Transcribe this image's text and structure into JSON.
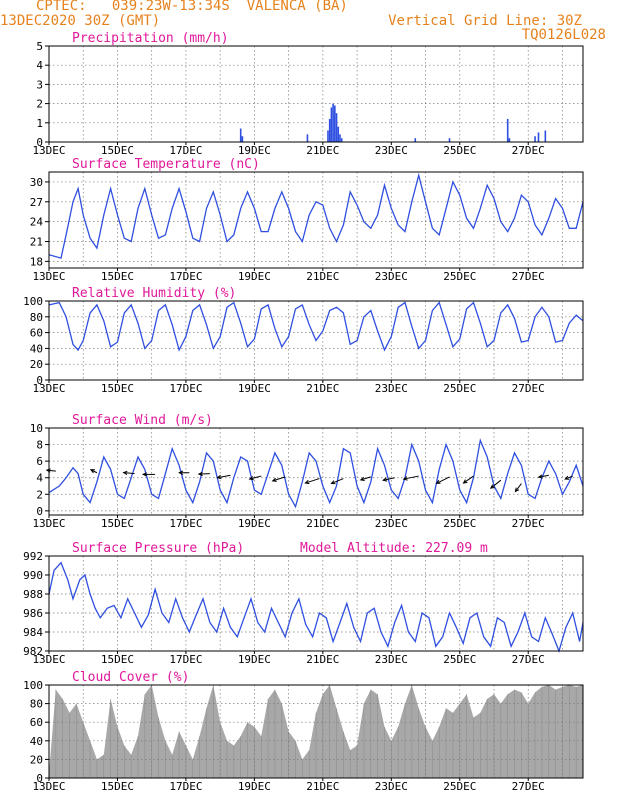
{
  "header": {
    "line1": "CPTEC:   039:23W-13:34S  VALENCA (BA)",
    "line2": "13DEC2020 30Z (GMT)",
    "grid_note": "Vertical Grid Line: 30Z",
    "code": "TQ0126L028"
  },
  "colors": {
    "header": "#e6821e",
    "title": "#e0189a",
    "series": "#2f4fe0",
    "cloud": "#a8a8a8",
    "grid": "#7a7a7a",
    "arrow": "#000000"
  },
  "chart_data": [
    {
      "type": "bar",
      "title": "Precipitation (mm/h)",
      "ylim": [
        0,
        5
      ],
      "yticks": [
        0,
        1,
        2,
        3,
        4,
        5
      ],
      "xticks": [
        "13DEC",
        "15DEC",
        "17DEC",
        "19DEC",
        "21DEC",
        "23DEC",
        "25DEC",
        "27DEC"
      ],
      "grid": true,
      "x_days": [
        5.6,
        5.65,
        7.55,
        8.15,
        8.2,
        8.25,
        8.3,
        8.35,
        8.4,
        8.45,
        8.5,
        8.55,
        10.7,
        11.7,
        13.4,
        13.45,
        14.2,
        14.3,
        14.5
      ],
      "values": [
        0.7,
        0.3,
        0.4,
        0.6,
        1.2,
        1.8,
        2.0,
        1.9,
        1.5,
        0.8,
        0.4,
        0.2,
        0.2,
        0.2,
        1.2,
        0.2,
        0.3,
        0.5,
        0.6
      ]
    },
    {
      "type": "line",
      "title": "Surface Temperature (nC)",
      "ylim": [
        17,
        31.5
      ],
      "yticks": [
        18,
        21,
        24,
        27,
        30
      ],
      "xticks": [
        "13DEC",
        "15DEC",
        "17DEC",
        "19DEC",
        "21DEC",
        "23DEC",
        "25DEC",
        "27DEC"
      ],
      "grid": true,
      "series": [
        {
          "x_days": [
            0,
            0.35,
            0.5,
            0.7,
            0.85,
            1.0,
            1.2,
            1.4,
            1.6,
            1.8,
            2.0,
            2.2,
            2.4,
            2.6,
            2.8,
            3.0,
            3.2,
            3.4,
            3.6,
            3.8,
            4.0,
            4.2,
            4.4,
            4.6,
            4.8,
            5.0,
            5.2,
            5.4,
            5.6,
            5.8,
            6.0,
            6.2,
            6.4,
            6.6,
            6.8,
            7.0,
            7.2,
            7.4,
            7.6,
            7.8,
            8.0,
            8.2,
            8.4,
            8.6,
            8.8,
            9.0,
            9.2,
            9.4,
            9.6,
            9.8,
            10.0,
            10.2,
            10.4,
            10.6,
            10.8,
            11.0,
            11.2,
            11.4,
            11.6,
            11.8,
            12.0,
            12.2,
            12.4,
            12.6,
            12.8,
            13.0,
            13.2,
            13.4,
            13.6,
            13.8,
            14.0,
            14.2,
            14.4,
            14.6,
            14.8,
            15.0,
            15.2,
            15.4,
            15.6
          ],
          "values": [
            19.0,
            18.5,
            22.0,
            27.0,
            29.0,
            25.0,
            21.5,
            20.0,
            25.0,
            29.0,
            25.0,
            21.5,
            21.0,
            26.0,
            29.0,
            25.0,
            21.5,
            22.0,
            26.0,
            29.0,
            25.5,
            21.5,
            21.0,
            26.0,
            28.5,
            25.0,
            21.0,
            22.0,
            26.0,
            28.5,
            26.0,
            22.5,
            22.5,
            26.0,
            28.5,
            26.0,
            22.5,
            21.0,
            25.0,
            27.0,
            26.5,
            23.0,
            21.0,
            23.5,
            28.5,
            26.5,
            24.0,
            23.0,
            25.0,
            29.5,
            26.0,
            23.5,
            22.5,
            27.0,
            31.0,
            27.0,
            23.0,
            22.0,
            26.0,
            30.0,
            28.0,
            24.5,
            23.0,
            26.0,
            29.5,
            27.5,
            24.0,
            22.5,
            24.5,
            28.0,
            27.0,
            23.5,
            22.0,
            24.5,
            27.5,
            26.0,
            23.0,
            23.0,
            27.0
          ]
        }
      ]
    },
    {
      "type": "line",
      "title": "Relative Humidity (%)",
      "ylim": [
        0,
        100
      ],
      "yticks": [
        0,
        20,
        40,
        60,
        80,
        100
      ],
      "xticks": [
        "13DEC",
        "15DEC",
        "17DEC",
        "19DEC",
        "21DEC",
        "23DEC",
        "25DEC",
        "27DEC"
      ],
      "grid": true,
      "series": [
        {
          "x_days": [
            0,
            0.3,
            0.5,
            0.7,
            0.85,
            1.0,
            1.2,
            1.4,
            1.6,
            1.8,
            2.0,
            2.2,
            2.4,
            2.6,
            2.8,
            3.0,
            3.2,
            3.4,
            3.6,
            3.8,
            4.0,
            4.2,
            4.4,
            4.6,
            4.8,
            5.0,
            5.2,
            5.4,
            5.6,
            5.8,
            6.0,
            6.2,
            6.4,
            6.6,
            6.8,
            7.0,
            7.2,
            7.4,
            7.6,
            7.8,
            8.0,
            8.2,
            8.4,
            8.6,
            8.8,
            9.0,
            9.2,
            9.4,
            9.6,
            9.8,
            10.0,
            10.2,
            10.4,
            10.6,
            10.8,
            11.0,
            11.2,
            11.4,
            11.6,
            11.8,
            12.0,
            12.2,
            12.4,
            12.6,
            12.8,
            13.0,
            13.2,
            13.4,
            13.6,
            13.8,
            14.0,
            14.2,
            14.4,
            14.6,
            14.8,
            15.0,
            15.2,
            15.4,
            15.6
          ],
          "values": [
            95,
            98,
            80,
            45,
            38,
            50,
            85,
            95,
            75,
            42,
            48,
            85,
            95,
            72,
            40,
            50,
            88,
            95,
            70,
            38,
            55,
            88,
            95,
            70,
            40,
            55,
            92,
            98,
            72,
            42,
            52,
            90,
            95,
            65,
            42,
            55,
            90,
            95,
            70,
            50,
            62,
            88,
            92,
            85,
            45,
            50,
            80,
            88,
            62,
            38,
            55,
            92,
            98,
            68,
            40,
            50,
            88,
            98,
            70,
            42,
            52,
            90,
            98,
            72,
            42,
            50,
            85,
            95,
            78,
            48,
            50,
            80,
            92,
            80,
            48,
            50,
            72,
            82,
            75
          ]
        }
      ]
    },
    {
      "type": "line",
      "title": "Surface Wind (m/s)",
      "ylim": [
        -0.5,
        10
      ],
      "yticks": [
        0,
        2,
        4,
        6,
        8,
        10
      ],
      "xticks": [
        "13DEC",
        "15DEC",
        "17DEC",
        "19DEC",
        "21DEC",
        "23DEC",
        "25DEC",
        "27DEC"
      ],
      "grid": true,
      "series": [
        {
          "x_days": [
            0,
            0.3,
            0.5,
            0.7,
            0.85,
            1.0,
            1.2,
            1.4,
            1.6,
            1.8,
            2.0,
            2.2,
            2.4,
            2.6,
            2.8,
            3.0,
            3.2,
            3.4,
            3.6,
            3.8,
            4.0,
            4.2,
            4.4,
            4.6,
            4.8,
            5.0,
            5.2,
            5.4,
            5.6,
            5.8,
            6.0,
            6.2,
            6.4,
            6.6,
            6.8,
            7.0,
            7.2,
            7.4,
            7.6,
            7.8,
            8.0,
            8.2,
            8.4,
            8.6,
            8.8,
            9.0,
            9.2,
            9.4,
            9.6,
            9.8,
            10.0,
            10.2,
            10.4,
            10.6,
            10.8,
            11.0,
            11.2,
            11.4,
            11.6,
            11.8,
            12.0,
            12.2,
            12.4,
            12.6,
            12.8,
            13.0,
            13.2,
            13.4,
            13.6,
            13.8,
            14.0,
            14.2,
            14.4,
            14.6,
            14.8,
            15.0,
            15.2,
            15.4,
            15.6
          ],
          "values": [
            2.2,
            3.0,
            4.0,
            5.2,
            4.5,
            2.0,
            1.0,
            3.5,
            6.5,
            5.0,
            2.0,
            1.5,
            4.0,
            6.5,
            5.0,
            2.0,
            1.5,
            4.5,
            7.5,
            5.5,
            2.5,
            1.0,
            3.5,
            7.0,
            6.0,
            2.5,
            1.0,
            4.0,
            6.5,
            6.0,
            2.5,
            2.0,
            4.5,
            7.0,
            5.5,
            2.0,
            0.5,
            3.5,
            7.0,
            6.0,
            3.0,
            1.0,
            3.0,
            7.5,
            7.0,
            3.0,
            1.0,
            3.5,
            7.5,
            5.5,
            2.5,
            1.5,
            4.0,
            8.0,
            6.0,
            2.5,
            1.0,
            5.0,
            8.0,
            6.0,
            2.5,
            1.0,
            4.0,
            8.5,
            6.5,
            3.0,
            1.5,
            4.5,
            7.0,
            5.5,
            2.0,
            1.5,
            4.0,
            6.0,
            4.5,
            2.0,
            3.5,
            5.5,
            3.0
          ]
        }
      ],
      "arrows": {
        "x_days": [
          0.2,
          1.4,
          2.5,
          3.1,
          4.1,
          4.7,
          5.3,
          6.2,
          6.9,
          7.9,
          8.6,
          9.4,
          10.1,
          10.8,
          11.7,
          12.4,
          13.2,
          13.8,
          14.6,
          15.3
        ],
        "y_values": [
          4.8,
          4.6,
          4.5,
          4.4,
          4.6,
          4.5,
          4.3,
          4.2,
          4.1,
          3.9,
          3.9,
          4.1,
          4.0,
          4.2,
          4.1,
          4.2,
          3.7,
          3.3,
          4.3,
          4.2
        ],
        "u": [
          -1.8,
          -1.2,
          -2.2,
          -2.4,
          -2.0,
          -2.2,
          -2.6,
          -2.3,
          -2.5,
          -2.8,
          -2.4,
          -2.0,
          -2.3,
          -3.0,
          -2.6,
          -2.0,
          -2.0,
          -1.2,
          -2.0,
          -1.5
        ],
        "v": [
          0.2,
          0.6,
          0.2,
          0.0,
          0.0,
          -0.1,
          -0.5,
          -0.6,
          -0.8,
          -0.9,
          -1.0,
          -0.6,
          -0.5,
          -0.6,
          -1.3,
          -1.4,
          -1.6,
          -1.6,
          -0.4,
          -0.6
        ]
      }
    },
    {
      "type": "line",
      "title": "Surface Pressure (hPa)",
      "annotation": "Model Altitude: 227.09 m",
      "ylim": [
        982,
        992
      ],
      "yticks": [
        982,
        984,
        986,
        988,
        990,
        992
      ],
      "xticks": [
        "13DEC",
        "15DEC",
        "17DEC",
        "19DEC",
        "21DEC",
        "23DEC",
        "25DEC",
        "27DEC"
      ],
      "grid": true,
      "series": [
        {
          "x_days": [
            0,
            0.15,
            0.35,
            0.55,
            0.7,
            0.9,
            1.05,
            1.2,
            1.35,
            1.5,
            1.7,
            1.9,
            2.1,
            2.3,
            2.5,
            2.7,
            2.9,
            3.1,
            3.3,
            3.5,
            3.7,
            3.9,
            4.1,
            4.3,
            4.5,
            4.7,
            4.9,
            5.1,
            5.3,
            5.5,
            5.7,
            5.9,
            6.1,
            6.3,
            6.5,
            6.7,
            6.9,
            7.1,
            7.3,
            7.5,
            7.7,
            7.9,
            8.1,
            8.3,
            8.5,
            8.7,
            8.9,
            9.1,
            9.3,
            9.5,
            9.7,
            9.9,
            10.1,
            10.3,
            10.5,
            10.7,
            10.9,
            11.1,
            11.3,
            11.5,
            11.7,
            11.9,
            12.1,
            12.3,
            12.5,
            12.7,
            12.9,
            13.1,
            13.3,
            13.5,
            13.7,
            13.9,
            14.1,
            14.3,
            14.5,
            14.7,
            14.9,
            15.1,
            15.3,
            15.5,
            15.6
          ],
          "values": [
            988.0,
            990.5,
            991.3,
            989.5,
            987.5,
            989.5,
            990.0,
            988.0,
            986.5,
            985.5,
            986.5,
            986.8,
            985.5,
            987.5,
            986.0,
            984.5,
            985.8,
            988.5,
            986.0,
            985.0,
            987.5,
            985.5,
            984.0,
            985.8,
            987.5,
            985.0,
            984.0,
            986.5,
            984.5,
            983.5,
            985.5,
            987.5,
            985.0,
            984.0,
            986.5,
            985.0,
            983.5,
            986.0,
            987.5,
            984.8,
            983.5,
            986.0,
            985.5,
            983.0,
            985.0,
            987.0,
            984.5,
            983.0,
            986.0,
            986.5,
            984.0,
            982.5,
            985.0,
            986.8,
            984.0,
            983.0,
            986.0,
            985.5,
            982.5,
            983.5,
            986.0,
            984.5,
            982.8,
            985.5,
            986.0,
            983.5,
            982.5,
            985.5,
            985.0,
            982.5,
            984.0,
            986.0,
            983.5,
            983.0,
            985.5,
            983.8,
            982.0,
            984.5,
            986.0,
            983.0,
            985.0
          ]
        }
      ]
    },
    {
      "type": "bar",
      "title": "Cloud Cover (%)",
      "ylim": [
        0,
        100
      ],
      "yticks": [
        0,
        20,
        40,
        60,
        80,
        100
      ],
      "xticks": [
        "13DEC",
        "15DEC",
        "17DEC",
        "19DEC",
        "21DEC",
        "23DEC",
        "25DEC",
        "27DEC"
      ],
      "grid": true,
      "x_days": [
        0.0,
        0.2,
        0.4,
        0.6,
        0.8,
        1.0,
        1.2,
        1.4,
        1.6,
        1.8,
        2.0,
        2.2,
        2.4,
        2.6,
        2.8,
        3.0,
        3.2,
        3.4,
        3.6,
        3.8,
        4.0,
        4.2,
        4.4,
        4.6,
        4.8,
        5.0,
        5.2,
        5.4,
        5.6,
        5.8,
        6.0,
        6.2,
        6.4,
        6.6,
        6.8,
        7.0,
        7.2,
        7.4,
        7.6,
        7.8,
        8.0,
        8.2,
        8.4,
        8.6,
        8.8,
        9.0,
        9.2,
        9.4,
        9.6,
        9.8,
        10.0,
        10.2,
        10.4,
        10.6,
        10.8,
        11.0,
        11.2,
        11.4,
        11.6,
        11.8,
        12.0,
        12.2,
        12.4,
        12.6,
        12.8,
        13.0,
        13.2,
        13.4,
        13.6,
        13.8,
        14.0,
        14.2,
        14.4,
        14.6,
        14.8,
        15.0,
        15.2,
        15.4,
        15.6
      ],
      "values": [
        5,
        95,
        85,
        70,
        80,
        60,
        40,
        20,
        25,
        85,
        55,
        35,
        25,
        45,
        90,
        100,
        65,
        40,
        25,
        50,
        35,
        20,
        45,
        75,
        100,
        60,
        40,
        35,
        45,
        60,
        55,
        45,
        85,
        95,
        80,
        50,
        40,
        20,
        30,
        70,
        90,
        100,
        75,
        50,
        30,
        35,
        80,
        95,
        90,
        55,
        40,
        55,
        80,
        100,
        75,
        55,
        40,
        55,
        75,
        70,
        80,
        90,
        65,
        70,
        85,
        90,
        80,
        90,
        95,
        92,
        80,
        92,
        98,
        100,
        95,
        98,
        100,
        98,
        100
      ]
    }
  ]
}
